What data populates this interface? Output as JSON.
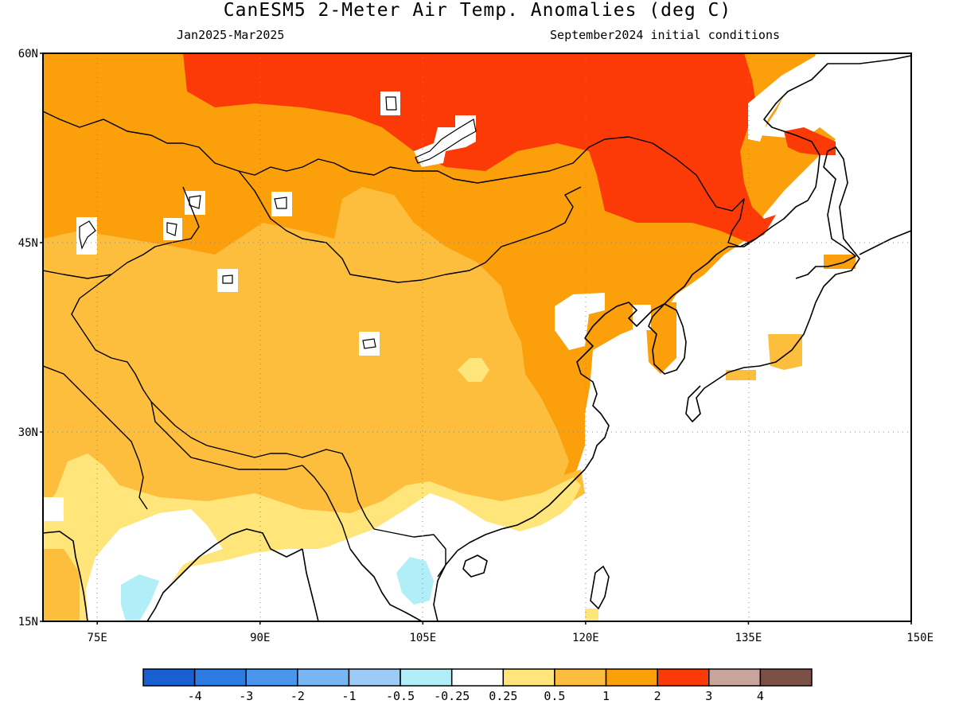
{
  "header": {
    "title": "CanESM5 2-Meter Air Temp. Anomalies (deg C)",
    "period": "Jan2025-Mar2025",
    "init": "September2024 initial conditions"
  },
  "map": {
    "lon_range": [
      70,
      150
    ],
    "lat_range": [
      15,
      60
    ],
    "lat_ticks": [
      {
        "value": 60,
        "label": "60N"
      },
      {
        "value": 45,
        "label": "45N"
      },
      {
        "value": 30,
        "label": "30N"
      },
      {
        "value": 15,
        "label": "15N"
      }
    ],
    "lon_ticks": [
      {
        "value": 75,
        "label": "75E"
      },
      {
        "value": 90,
        "label": "90E"
      },
      {
        "value": 105,
        "label": "105E"
      },
      {
        "value": 120,
        "label": "120E"
      },
      {
        "value": 135,
        "label": "135E"
      },
      {
        "value": 150,
        "label": "150E"
      }
    ]
  },
  "colorbar": {
    "colors": [
      "#1a5fcf",
      "#2b7be0",
      "#4a96ec",
      "#78b6f3",
      "#9cccf6",
      "#b2eef8",
      "#ffffff",
      "#ffe57a",
      "#fdbe3e",
      "#fb9f0b",
      "#fb3a07",
      "#c8a49b",
      "#7a5047"
    ],
    "labels": [
      "-4",
      "-3",
      "-2",
      "-1",
      "-0.5",
      "-0.25",
      "0.25",
      "0.5",
      "1",
      "2",
      "3",
      "4"
    ]
  }
}
